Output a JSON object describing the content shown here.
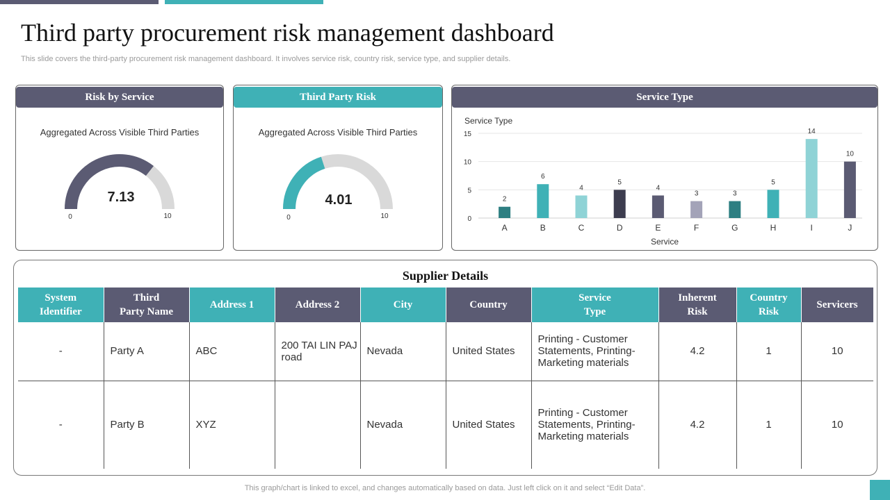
{
  "page": {
    "title": "Third party procurement risk management dashboard",
    "subtitle": "This slide covers the third-party procurement risk management dashboard. It involves service risk, country risk, service type, and supplier details.",
    "footer": "This graph/chart is linked to excel, and changes automatically based on data. Just left click on it and select “Edit Data”."
  },
  "colors": {
    "dark": "#5b5b73",
    "teal": "#3fb1b6",
    "gauge_track": "#d9d9d9",
    "inherent": "#e8a317",
    "country": "#23a04a",
    "servicers": "#e0141e"
  },
  "risk_by_service": {
    "header": "Risk by Service",
    "caption": "Aggregated Across Visible Third Parties",
    "value_label": "7.13",
    "min_label": "0",
    "max_label": "10"
  },
  "third_party_risk": {
    "header": "Third Party Risk",
    "caption": "Aggregated Across Visible Third Parties",
    "value_label": "4.01",
    "min_label": "0",
    "max_label": "10"
  },
  "service_type": {
    "header": "Service Type"
  },
  "chart_data": [
    {
      "type": "gauge",
      "value": 7.13,
      "range": [
        0,
        10
      ],
      "color": "#5b5b73"
    },
    {
      "type": "gauge",
      "value": 4.01,
      "range": [
        0,
        10
      ],
      "color": "#3fb1b6"
    },
    {
      "type": "bar",
      "title": "Service Type",
      "xlabel": "Service",
      "ylabel": "",
      "categories": [
        "A",
        "B",
        "C",
        "D",
        "E",
        "F",
        "G",
        "H",
        "I",
        "J"
      ],
      "values": [
        2,
        6,
        4,
        5,
        4,
        3,
        3,
        5,
        14,
        10
      ],
      "bar_colors": [
        "#2e7f82",
        "#3fb1b6",
        "#8fd3d6",
        "#3d3d4f",
        "#5b5b73",
        "#a3a3b8",
        "#2e7f82",
        "#3fb1b6",
        "#8fd3d6",
        "#5b5b73"
      ],
      "ylim": [
        0,
        15
      ],
      "yticks": [
        0,
        5,
        10,
        15
      ],
      "grid": true,
      "data_labels": true
    }
  ],
  "supplier": {
    "title": "Supplier Details",
    "columns": [
      {
        "label": "System\nIdentifier",
        "style": "teal"
      },
      {
        "label": "Third\nParty Name",
        "style": "dark"
      },
      {
        "label": "Address 1",
        "style": "teal"
      },
      {
        "label": "Address 2",
        "style": "dark"
      },
      {
        "label": "City",
        "style": "teal"
      },
      {
        "label": "Country",
        "style": "dark"
      },
      {
        "label": "Service\nType",
        "style": "teal"
      },
      {
        "label": "Inherent\nRisk",
        "style": "dark"
      },
      {
        "label": "Country\nRisk",
        "style": "teal"
      },
      {
        "label": "Servicers",
        "style": "dark"
      }
    ],
    "rows": [
      {
        "system_id": "-",
        "party_name": "Party A",
        "address1": "ABC",
        "address2": "200 TAI LIN PAJ road",
        "city": "Nevada",
        "country": "United States",
        "service_type": "Printing - Customer Statements, Printing- Marketing materials",
        "inherent_risk": "4.2",
        "country_risk": "1",
        "servicers": "10"
      },
      {
        "system_id": "-",
        "party_name": "Party B",
        "address1": "XYZ",
        "address2": "",
        "city": "Nevada",
        "country": "United States",
        "service_type": "Printing - Customer Statements, Printing- Marketing materials",
        "inherent_risk": "4.2",
        "country_risk": "1",
        "servicers": "10"
      }
    ]
  }
}
